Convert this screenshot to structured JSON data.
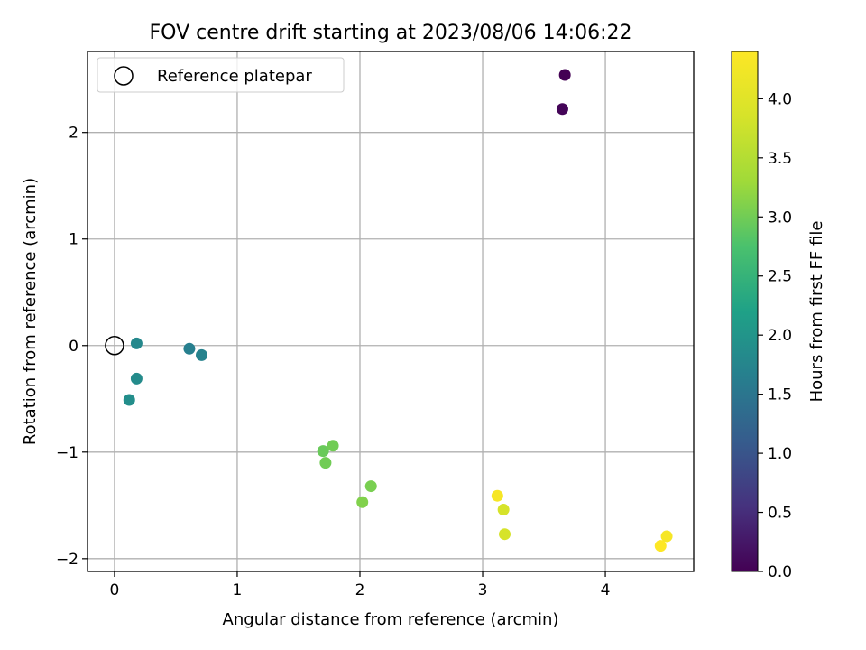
{
  "chart_data": {
    "type": "scatter",
    "title": "FOV centre drift starting at 2023/08/06 14:06:22",
    "xlabel": "Angular distance from reference (arcmin)",
    "ylabel": "Rotation from reference (arcmin)",
    "xlim": [
      -0.22,
      4.72
    ],
    "ylim": [
      -2.12,
      2.76
    ],
    "xticks": [
      0,
      1,
      2,
      3,
      4
    ],
    "xtick_labels": [
      "0",
      "1",
      "2",
      "3",
      "4"
    ],
    "yticks": [
      -2,
      -1,
      0,
      1,
      2
    ],
    "ytick_labels": [
      "−2",
      "−1",
      "0",
      "1",
      "2"
    ],
    "grid": true,
    "legend": {
      "placement": "upper-left",
      "entries": [
        "Reference platepar"
      ]
    },
    "reference_point": {
      "name": "Reference platepar",
      "x": 0,
      "y": 0
    },
    "colorbar": {
      "label": "Hours from first FF file",
      "range": [
        0.0,
        4.4
      ],
      "ticks": [
        0.0,
        0.5,
        1.0,
        1.5,
        2.0,
        2.5,
        3.0,
        3.5,
        4.0
      ],
      "tick_labels": [
        "0.0",
        "0.5",
        "1.0",
        "1.5",
        "2.0",
        "2.5",
        "3.0",
        "3.5",
        "4.0"
      ],
      "colormap": "viridis"
    },
    "points": [
      {
        "x": 3.67,
        "y": 2.54,
        "hours": 0.0
      },
      {
        "x": 3.65,
        "y": 2.22,
        "hours": 0.05
      },
      {
        "x": 0.61,
        "y": -0.03,
        "hours": 1.65
      },
      {
        "x": 0.71,
        "y": -0.09,
        "hours": 1.7
      },
      {
        "x": 0.18,
        "y": 0.02,
        "hours": 1.8
      },
      {
        "x": 0.18,
        "y": -0.31,
        "hours": 1.85
      },
      {
        "x": 0.12,
        "y": -0.51,
        "hours": 1.9
      },
      {
        "x": 1.7,
        "y": -0.99,
        "hours": 2.95
      },
      {
        "x": 1.78,
        "y": -0.94,
        "hours": 3.0
      },
      {
        "x": 1.72,
        "y": -1.1,
        "hours": 3.0
      },
      {
        "x": 2.09,
        "y": -1.32,
        "hours": 3.05
      },
      {
        "x": 2.02,
        "y": -1.47,
        "hours": 3.1
      },
      {
        "x": 3.17,
        "y": -1.54,
        "hours": 3.85
      },
      {
        "x": 3.18,
        "y": -1.77,
        "hours": 3.85
      },
      {
        "x": 3.12,
        "y": -1.41,
        "hours": 4.3
      },
      {
        "x": 4.5,
        "y": -1.79,
        "hours": 4.3
      },
      {
        "x": 4.45,
        "y": -1.88,
        "hours": 4.4
      }
    ]
  }
}
